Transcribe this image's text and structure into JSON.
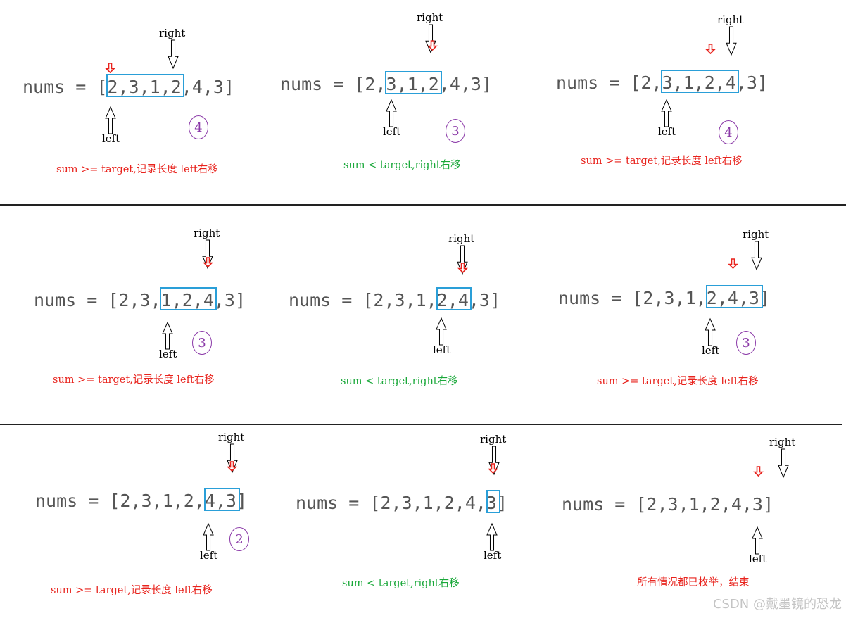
{
  "panels": [
    {
      "array": "nums = [2,3,1,2,4,3]",
      "hl_start": 0,
      "hl_end": 3,
      "right_label": "right",
      "left_label": "left",
      "count": "4",
      "note": "sum >= target,记录长度 left右移",
      "note_color": "red"
    },
    {
      "array": "nums = [2,3,1,2,4,3]",
      "hl_start": 1,
      "hl_end": 3,
      "right_label": "right",
      "left_label": "left",
      "count": "3",
      "note": "sum < target,right右移",
      "note_color": "green"
    },
    {
      "array": "nums = [2,3,1,2,4,3]",
      "hl_start": 1,
      "hl_end": 4,
      "right_label": "right",
      "left_label": "left",
      "count": "4",
      "note": "sum >= target,记录长度 left右移",
      "note_color": "red"
    },
    {
      "array": "nums = [2,3,1,2,4,3]",
      "hl_start": 2,
      "hl_end": 4,
      "right_label": "right",
      "left_label": "left",
      "count": "3",
      "note": "sum >= target,记录长度 left右移",
      "note_color": "red"
    },
    {
      "array": "nums = [2,3,1,2,4,3]",
      "hl_start": 3,
      "hl_end": 4,
      "right_label": "right",
      "left_label": "left",
      "count": "",
      "note": "sum < target,right右移",
      "note_color": "green"
    },
    {
      "array": "nums = [2,3,1,2,4,3]",
      "hl_start": 3,
      "hl_end": 5,
      "right_label": "right",
      "left_label": "left",
      "count": "3",
      "note": "sum >= target,记录长度 left右移",
      "note_color": "red"
    },
    {
      "array": "nums = [2,3,1,2,4,3]",
      "hl_start": 4,
      "hl_end": 5,
      "right_label": "right",
      "left_label": "left",
      "count": "2",
      "note": "sum >= target,记录长度 left右移",
      "note_color": "red"
    },
    {
      "array": "nums = [2,3,1,2,4,3]",
      "hl_start": 5,
      "hl_end": 5,
      "right_label": "right",
      "left_label": "left",
      "count": "",
      "note": "sum < target,right右移",
      "note_color": "green"
    },
    {
      "array": "nums = [2,3,1,2,4,3]",
      "hl_start": -1,
      "hl_end": -1,
      "right_label": "right",
      "left_label": "left",
      "count": "",
      "note": "所有情况都已枚举，结束",
      "note_color": "red"
    }
  ],
  "colors": {
    "highlight": "#2a9fd8",
    "red": "#e8231d",
    "green": "#1aa83a",
    "purple": "#8b3aa8"
  },
  "watermark": "CSDN @戴墨镜的恐龙"
}
